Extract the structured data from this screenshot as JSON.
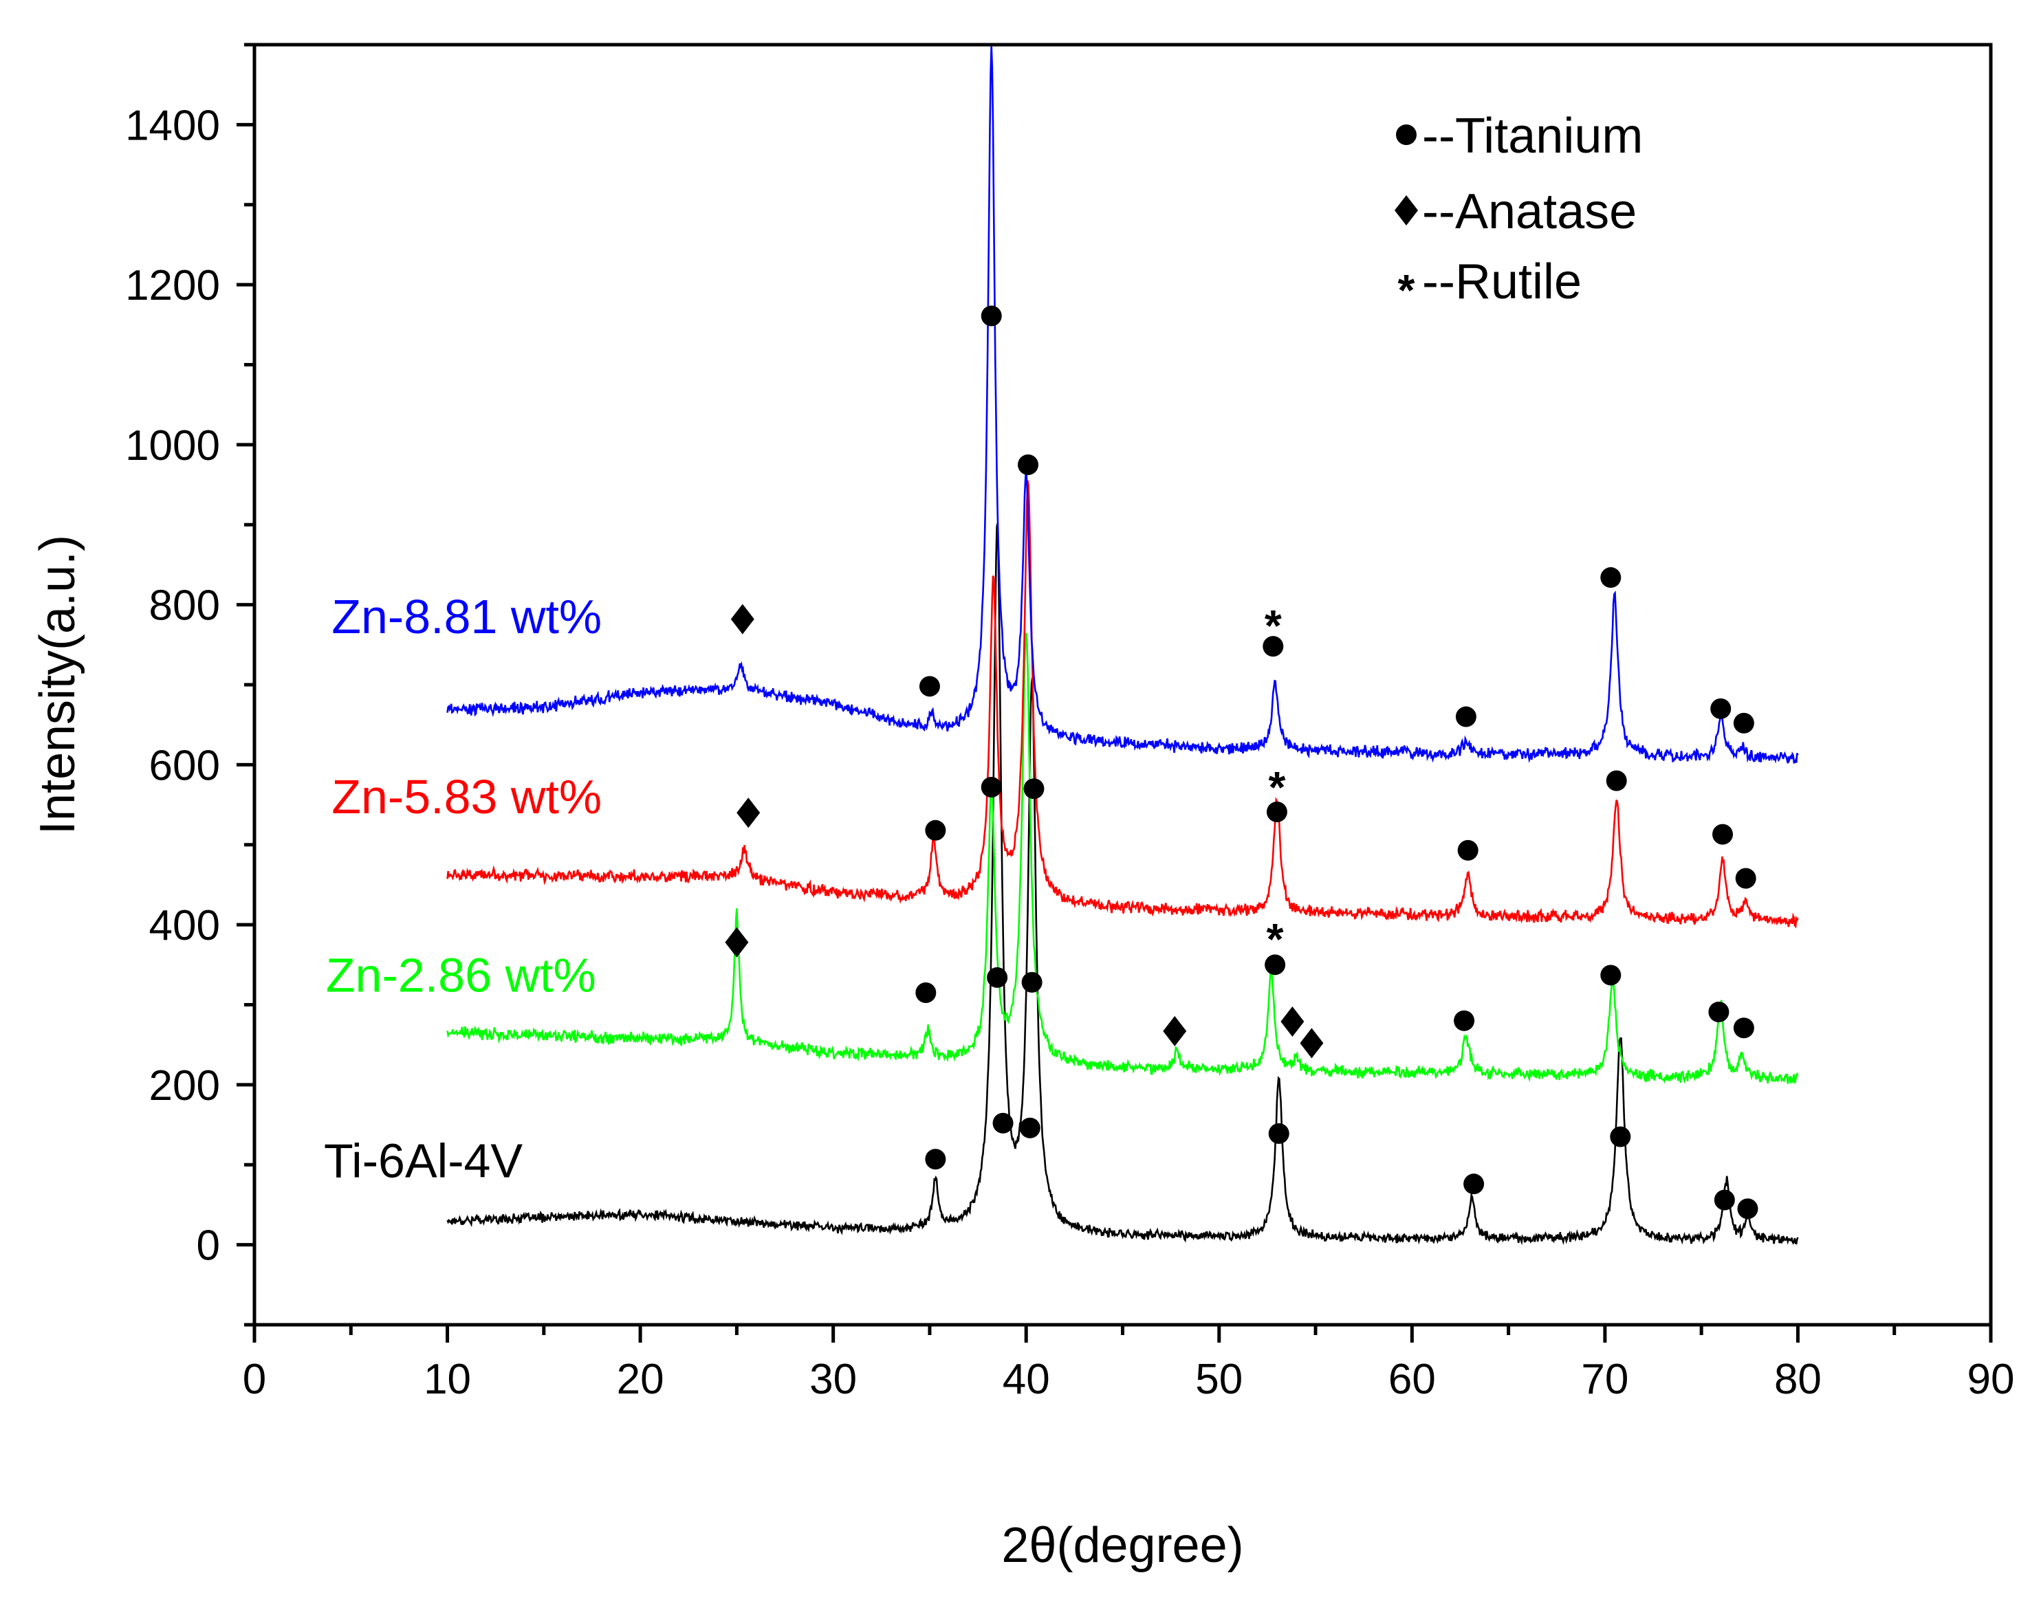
{
  "chart_data": {
    "type": "line",
    "title": "",
    "xlabel": "2θ(degree)",
    "ylabel": "Intensity(a.u.)",
    "xlim": [
      0,
      90
    ],
    "ylim": [
      -100,
      1500
    ],
    "x_ticks": [
      0,
      10,
      20,
      30,
      40,
      50,
      60,
      70,
      80,
      90
    ],
    "y_ticks": [
      0,
      200,
      400,
      600,
      800,
      1000,
      1200,
      1400
    ],
    "x_tick_labels": [
      "0",
      "10",
      "20",
      "30",
      "40",
      "50",
      "60",
      "70",
      "80",
      "90"
    ],
    "y_tick_labels": [
      "0",
      "200",
      "400",
      "600",
      "800",
      "1000",
      "1200",
      "1400"
    ],
    "grid": false,
    "legend": {
      "placement": "top-right",
      "entries": [
        {
          "symbol": "circle",
          "label": "●--Titanium",
          "text": "--Titanium"
        },
        {
          "symbol": "diamond",
          "label": "◆--Anatase",
          "text": "--Anatase"
        },
        {
          "symbol": "asterisk",
          "label": "*--Rutile",
          "text": "--Rutile"
        }
      ]
    },
    "series": [
      {
        "name": "Ti-6Al-4V",
        "color": "#000000",
        "baseline": [
          [
            10,
            30
          ],
          [
            20,
            38
          ],
          [
            30,
            20
          ],
          [
            37,
            15
          ],
          [
            45,
            10
          ],
          [
            60,
            8
          ],
          [
            80,
            5
          ]
        ],
        "peaks": [
          [
            35.3,
            60,
            0.18
          ],
          [
            38.5,
            880,
            0.25
          ],
          [
            40.3,
            680,
            0.25
          ],
          [
            53.1,
            200,
            0.22
          ],
          [
            63.1,
            50,
            0.2
          ],
          [
            70.8,
            255,
            0.25
          ],
          [
            76.3,
            75,
            0.2
          ],
          [
            77.4,
            30,
            0.18
          ]
        ],
        "noise": 7,
        "markers": [
          {
            "symbol": "circle",
            "x": 35.3,
            "y": 107
          },
          {
            "symbol": "circle",
            "x": 38.8,
            "y": 152
          },
          {
            "symbol": "circle",
            "x": 40.2,
            "y": 146
          },
          {
            "symbol": "circle",
            "x": 53.1,
            "y": 139
          },
          {
            "symbol": "circle",
            "x": 63.2,
            "y": 76
          },
          {
            "symbol": "circle",
            "x": 70.8,
            "y": 135
          },
          {
            "symbol": "circle",
            "x": 76.2,
            "y": 56
          },
          {
            "symbol": "circle",
            "x": 77.4,
            "y": 45
          }
        ]
      },
      {
        "name": "Zn-2.86 wt%",
        "color": "#00ff00",
        "baseline": [
          [
            10,
            265
          ],
          [
            25,
            255
          ],
          [
            30,
            240
          ],
          [
            37,
            230
          ],
          [
            45,
            220
          ],
          [
            60,
            215
          ],
          [
            80,
            207
          ]
        ],
        "peaks": [
          [
            25.0,
            160,
            0.15
          ],
          [
            34.9,
            35,
            0.18
          ],
          [
            38.2,
            340,
            0.22
          ],
          [
            40.0,
            540,
            0.25
          ],
          [
            47.8,
            20,
            0.2
          ],
          [
            52.7,
            120,
            0.2
          ],
          [
            54.0,
            15,
            0.2
          ],
          [
            62.8,
            50,
            0.2
          ],
          [
            70.4,
            120,
            0.22
          ],
          [
            76.0,
            95,
            0.2
          ],
          [
            77.1,
            30,
            0.18
          ]
        ],
        "noise": 9,
        "markers": [
          {
            "symbol": "diamond",
            "x": 25.0,
            "y": 378
          },
          {
            "symbol": "circle",
            "x": 34.8,
            "y": 315
          },
          {
            "symbol": "circle",
            "x": 38.5,
            "y": 334
          },
          {
            "symbol": "circle",
            "x": 40.3,
            "y": 328
          },
          {
            "symbol": "diamond",
            "x": 47.7,
            "y": 267
          },
          {
            "symbol": "asterisk",
            "x": 52.9,
            "y": 394
          },
          {
            "symbol": "circle",
            "x": 52.9,
            "y": 350
          },
          {
            "symbol": "diamond",
            "x": 53.8,
            "y": 279
          },
          {
            "symbol": "diamond",
            "x": 54.8,
            "y": 252
          },
          {
            "symbol": "circle",
            "x": 62.7,
            "y": 280
          },
          {
            "symbol": "circle",
            "x": 70.3,
            "y": 337
          },
          {
            "symbol": "circle",
            "x": 75.9,
            "y": 291
          },
          {
            "symbol": "circle",
            "x": 77.2,
            "y": 271
          }
        ]
      },
      {
        "name": "Zn-5.83 wt%",
        "color": "#ff0000",
        "baseline": [
          [
            10,
            462
          ],
          [
            25,
            460
          ],
          [
            30,
            440
          ],
          [
            37,
            430
          ],
          [
            45,
            420
          ],
          [
            60,
            412
          ],
          [
            80,
            404
          ]
        ],
        "peaks": [
          [
            25.4,
            35,
            0.2
          ],
          [
            35.2,
            75,
            0.18
          ],
          [
            38.3,
            400,
            0.22
          ],
          [
            40.1,
            520,
            0.25
          ],
          [
            53.0,
            140,
            0.2
          ],
          [
            62.9,
            55,
            0.2
          ],
          [
            70.6,
            150,
            0.22
          ],
          [
            76.1,
            75,
            0.2
          ],
          [
            77.3,
            25,
            0.18
          ]
        ],
        "noise": 9,
        "markers": [
          {
            "symbol": "diamond",
            "x": 25.6,
            "y": 540
          },
          {
            "symbol": "circle",
            "x": 35.3,
            "y": 518
          },
          {
            "symbol": "circle",
            "x": 38.2,
            "y": 572
          },
          {
            "symbol": "circle",
            "x": 40.4,
            "y": 570
          },
          {
            "symbol": "asterisk",
            "x": 53.0,
            "y": 584
          },
          {
            "symbol": "circle",
            "x": 53.0,
            "y": 541
          },
          {
            "symbol": "circle",
            "x": 62.9,
            "y": 493
          },
          {
            "symbol": "circle",
            "x": 70.6,
            "y": 580
          },
          {
            "symbol": "circle",
            "x": 76.1,
            "y": 513
          },
          {
            "symbol": "circle",
            "x": 77.3,
            "y": 458
          }
        ]
      },
      {
        "name": "Zn-8.81 wt%",
        "color": "#0000ff",
        "baseline": [
          [
            10,
            668
          ],
          [
            15,
            672
          ],
          [
            20,
            690
          ],
          [
            25,
            695
          ],
          [
            30,
            675
          ],
          [
            35,
            640
          ],
          [
            40,
            632
          ],
          [
            50,
            620
          ],
          [
            60,
            615
          ],
          [
            80,
            608
          ]
        ],
        "peaks": [
          [
            25.2,
            30,
            0.2
          ],
          [
            35.1,
            20,
            0.2
          ],
          [
            38.2,
            860,
            0.22
          ],
          [
            40.0,
            320,
            0.22
          ],
          [
            52.9,
            85,
            0.2
          ],
          [
            62.8,
            15,
            0.2
          ],
          [
            70.5,
            200,
            0.22
          ],
          [
            76.0,
            50,
            0.2
          ],
          [
            77.1,
            15,
            0.18
          ]
        ],
        "noise": 9,
        "markers": [
          {
            "symbol": "diamond",
            "x": 25.3,
            "y": 782
          },
          {
            "symbol": "circle",
            "x": 35.0,
            "y": 698
          },
          {
            "symbol": "circle",
            "x": 38.2,
            "y": 1161
          },
          {
            "symbol": "circle",
            "x": 40.1,
            "y": 975
          },
          {
            "symbol": "asterisk",
            "x": 52.8,
            "y": 786
          },
          {
            "symbol": "circle",
            "x": 52.8,
            "y": 748
          },
          {
            "symbol": "circle",
            "x": 62.8,
            "y": 660
          },
          {
            "symbol": "circle",
            "x": 70.3,
            "y": 834
          },
          {
            "symbol": "circle",
            "x": 76.0,
            "y": 670
          },
          {
            "symbol": "circle",
            "x": 77.2,
            "y": 652
          }
        ]
      }
    ],
    "series_labels": [
      {
        "series": "Zn-8.81 wt%",
        "text": "Zn-8.81 wt%",
        "color": "#0000ff",
        "x": 4,
        "y": 785
      },
      {
        "series": "Zn-5.83 wt%",
        "text": "Zn-5.83 wt%",
        "color": "#ff0000",
        "x": 4,
        "y": 560
      },
      {
        "series": "Zn-2.86 wt%",
        "text": "Zn-2.86 wt%",
        "color": "#00ff00",
        "x": 3.7,
        "y": 337
      },
      {
        "series": "Ti-6Al-4V",
        "text": "Ti-6Al-4V",
        "color": "#000000",
        "x": 3.6,
        "y": 105
      }
    ]
  }
}
